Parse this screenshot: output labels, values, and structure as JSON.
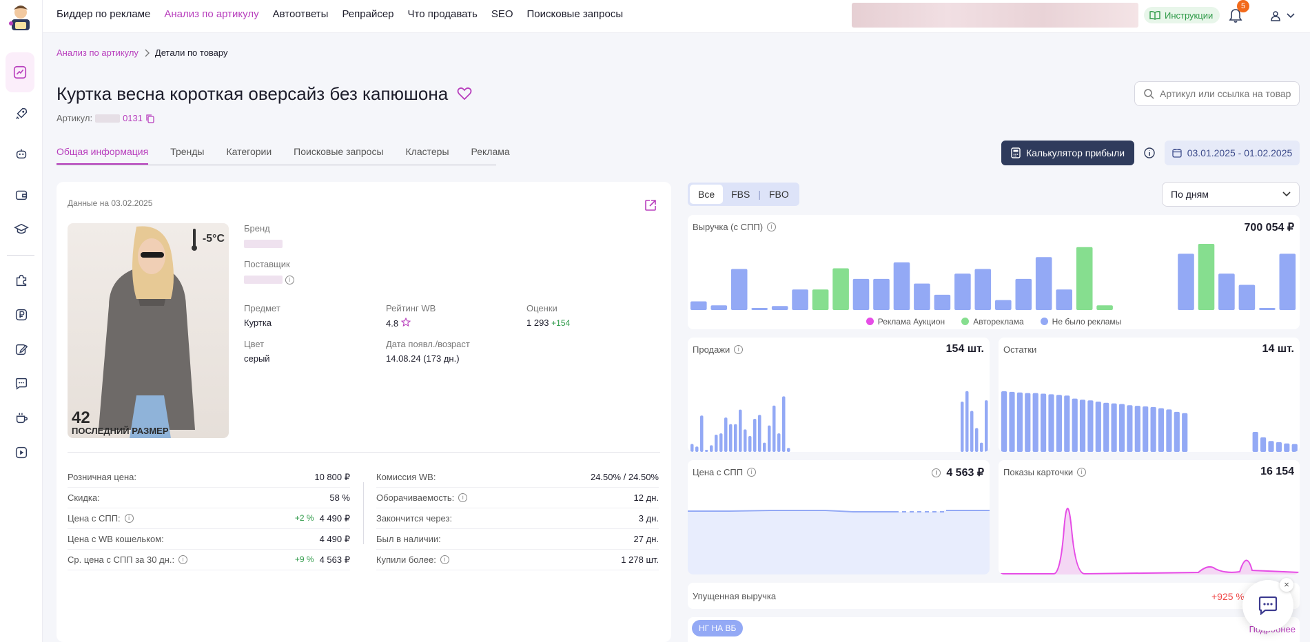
{
  "topnav": {
    "items": [
      "Биддер по рекламе",
      "Анализ по артикулу",
      "Автоответы",
      "Репрайсер",
      "Что продавать",
      "SEO",
      "Поисковые запросы"
    ],
    "active_index": 1
  },
  "header": {
    "instructions_label": "Инструкции",
    "notifications_count": "5"
  },
  "breadcrumb": {
    "parent": "Анализ по артикулу",
    "current": "Детали по товару"
  },
  "product": {
    "title": "Куртка весна короткая оверсайз без капюшона",
    "sku_label": "Артикул:",
    "sku_tail": "0131"
  },
  "search": {
    "placeholder": "Артикул или ссылка на товар"
  },
  "tabs": [
    "Общая информация",
    "Тренды",
    "Категории",
    "Поисковые запросы",
    "Кластеры",
    "Реклама"
  ],
  "toolbar": {
    "calc_label": "Калькулятор прибыли",
    "date_range": "03.01.2025 - 01.02.2025"
  },
  "card": {
    "data_on": "Данные на 03.02.2025",
    "photo_temp": "-5°C",
    "photo_size_num": "42",
    "photo_size_text": "ПОСЛЕДНИЙ РАЗМЕР",
    "brand_label": "Бренд",
    "supplier_label": "Поставщик",
    "subject_label": "Предмет",
    "subject": "Куртка",
    "rating_label": "Рейтинг WB",
    "rating": "4.8",
    "reviews_label": "Оценки",
    "reviews": "1 293",
    "reviews_delta": "+154",
    "color_label": "Цвет",
    "color": "серый",
    "date_label": "Дата появл./возраст",
    "date": "14.08.24 (173 дн.)"
  },
  "props_left": [
    {
      "k": "Розничная цена:",
      "v": "10 800 ₽",
      "d": "",
      "info": false
    },
    {
      "k": "Скидка:",
      "v": "58 %",
      "d": "",
      "info": false
    },
    {
      "k": "Цена с СПП:",
      "v": "4 490 ₽",
      "d": "+2 %",
      "info": true
    },
    {
      "k": "Цена с WB кошельком:",
      "v": "4 490 ₽",
      "d": "",
      "info": false
    },
    {
      "k": "Ср. цена с СПП за 30 дн.:",
      "v": "4 563 ₽",
      "d": "+9 %",
      "info": true
    }
  ],
  "props_right": [
    {
      "k": "Комиссия WB:",
      "v": "24.50% / 24.50%",
      "info": false
    },
    {
      "k": "Оборачиваемость:",
      "v": "12 дн.",
      "info": true
    },
    {
      "k": "Закончится через:",
      "v": "3 дн.",
      "info": false
    },
    {
      "k": "Был в наличии:",
      "v": "27 дн.",
      "info": false
    },
    {
      "k": "Купили более:",
      "v": "1 278 шт.",
      "info": true
    }
  ],
  "channels": [
    "Все",
    "FBS",
    "FBO"
  ],
  "period": "По дням",
  "colors": {
    "accent": "#b83fbd",
    "blue": "#93a9f5",
    "green": "#86de8f",
    "pink": "#e64de6"
  },
  "charts": {
    "revenue": {
      "title": "Выручка (с СПП)",
      "total": "700 054 ₽",
      "legend": [
        "Реклама Аукцион",
        "Автореклама",
        "Не было рекламы"
      ],
      "values": [
        13,
        7,
        62,
        3,
        6,
        31,
        31,
        63,
        47,
        47,
        72,
        40,
        23,
        55,
        62,
        15,
        47,
        80,
        31,
        95,
        7,
        0,
        0,
        0,
        85,
        100,
        55,
        38,
        3,
        85
      ],
      "kinds": [
        "b",
        "b",
        "b",
        "b",
        "b",
        "b",
        "g",
        "g",
        "b",
        "b",
        "b",
        "b",
        "b",
        "b",
        "b",
        "b",
        "b",
        "b",
        "b",
        "g",
        "g",
        "b",
        "b",
        "b",
        "b",
        "g",
        "b",
        "b",
        "b",
        "b"
      ]
    },
    "sales": {
      "title": "Продажи",
      "total": "154 шт.",
      "values": [
        12,
        8,
        55,
        3,
        10,
        26,
        28,
        52,
        42,
        42,
        64,
        34,
        24,
        50,
        56,
        14,
        40,
        70,
        28,
        84,
        6,
        0,
        0,
        0,
        0,
        0,
        0,
        0,
        0,
        0,
        0,
        0,
        0,
        0,
        0,
        0,
        0,
        0,
        0,
        0,
        0,
        0,
        0,
        0,
        0,
        0,
        0,
        0,
        0,
        0,
        0,
        0,
        0,
        0,
        0,
        0,
        76,
        92,
        62,
        36,
        14,
        78
      ]
    },
    "stock": {
      "title": "Остатки",
      "total": "14 шт.",
      "values": [
        100,
        99,
        98,
        97,
        97,
        96,
        95,
        94,
        93,
        88,
        86,
        85,
        83,
        81,
        80,
        79,
        77,
        76,
        75,
        74,
        72,
        70,
        66,
        64,
        0,
        0,
        0,
        0,
        0,
        0,
        0,
        0,
        33,
        24,
        18,
        16,
        14,
        13
      ]
    },
    "price": {
      "title": "Цена с СПП",
      "total": "4 563 ₽"
    },
    "views": {
      "title": "Показы карточки",
      "total": "16 154"
    }
  },
  "lost_revenue": {
    "label": "Упущенная выручка",
    "value": "+925 %"
  },
  "promo": {
    "tag": "НГ НА ВБ",
    "more": "Подробнее"
  }
}
